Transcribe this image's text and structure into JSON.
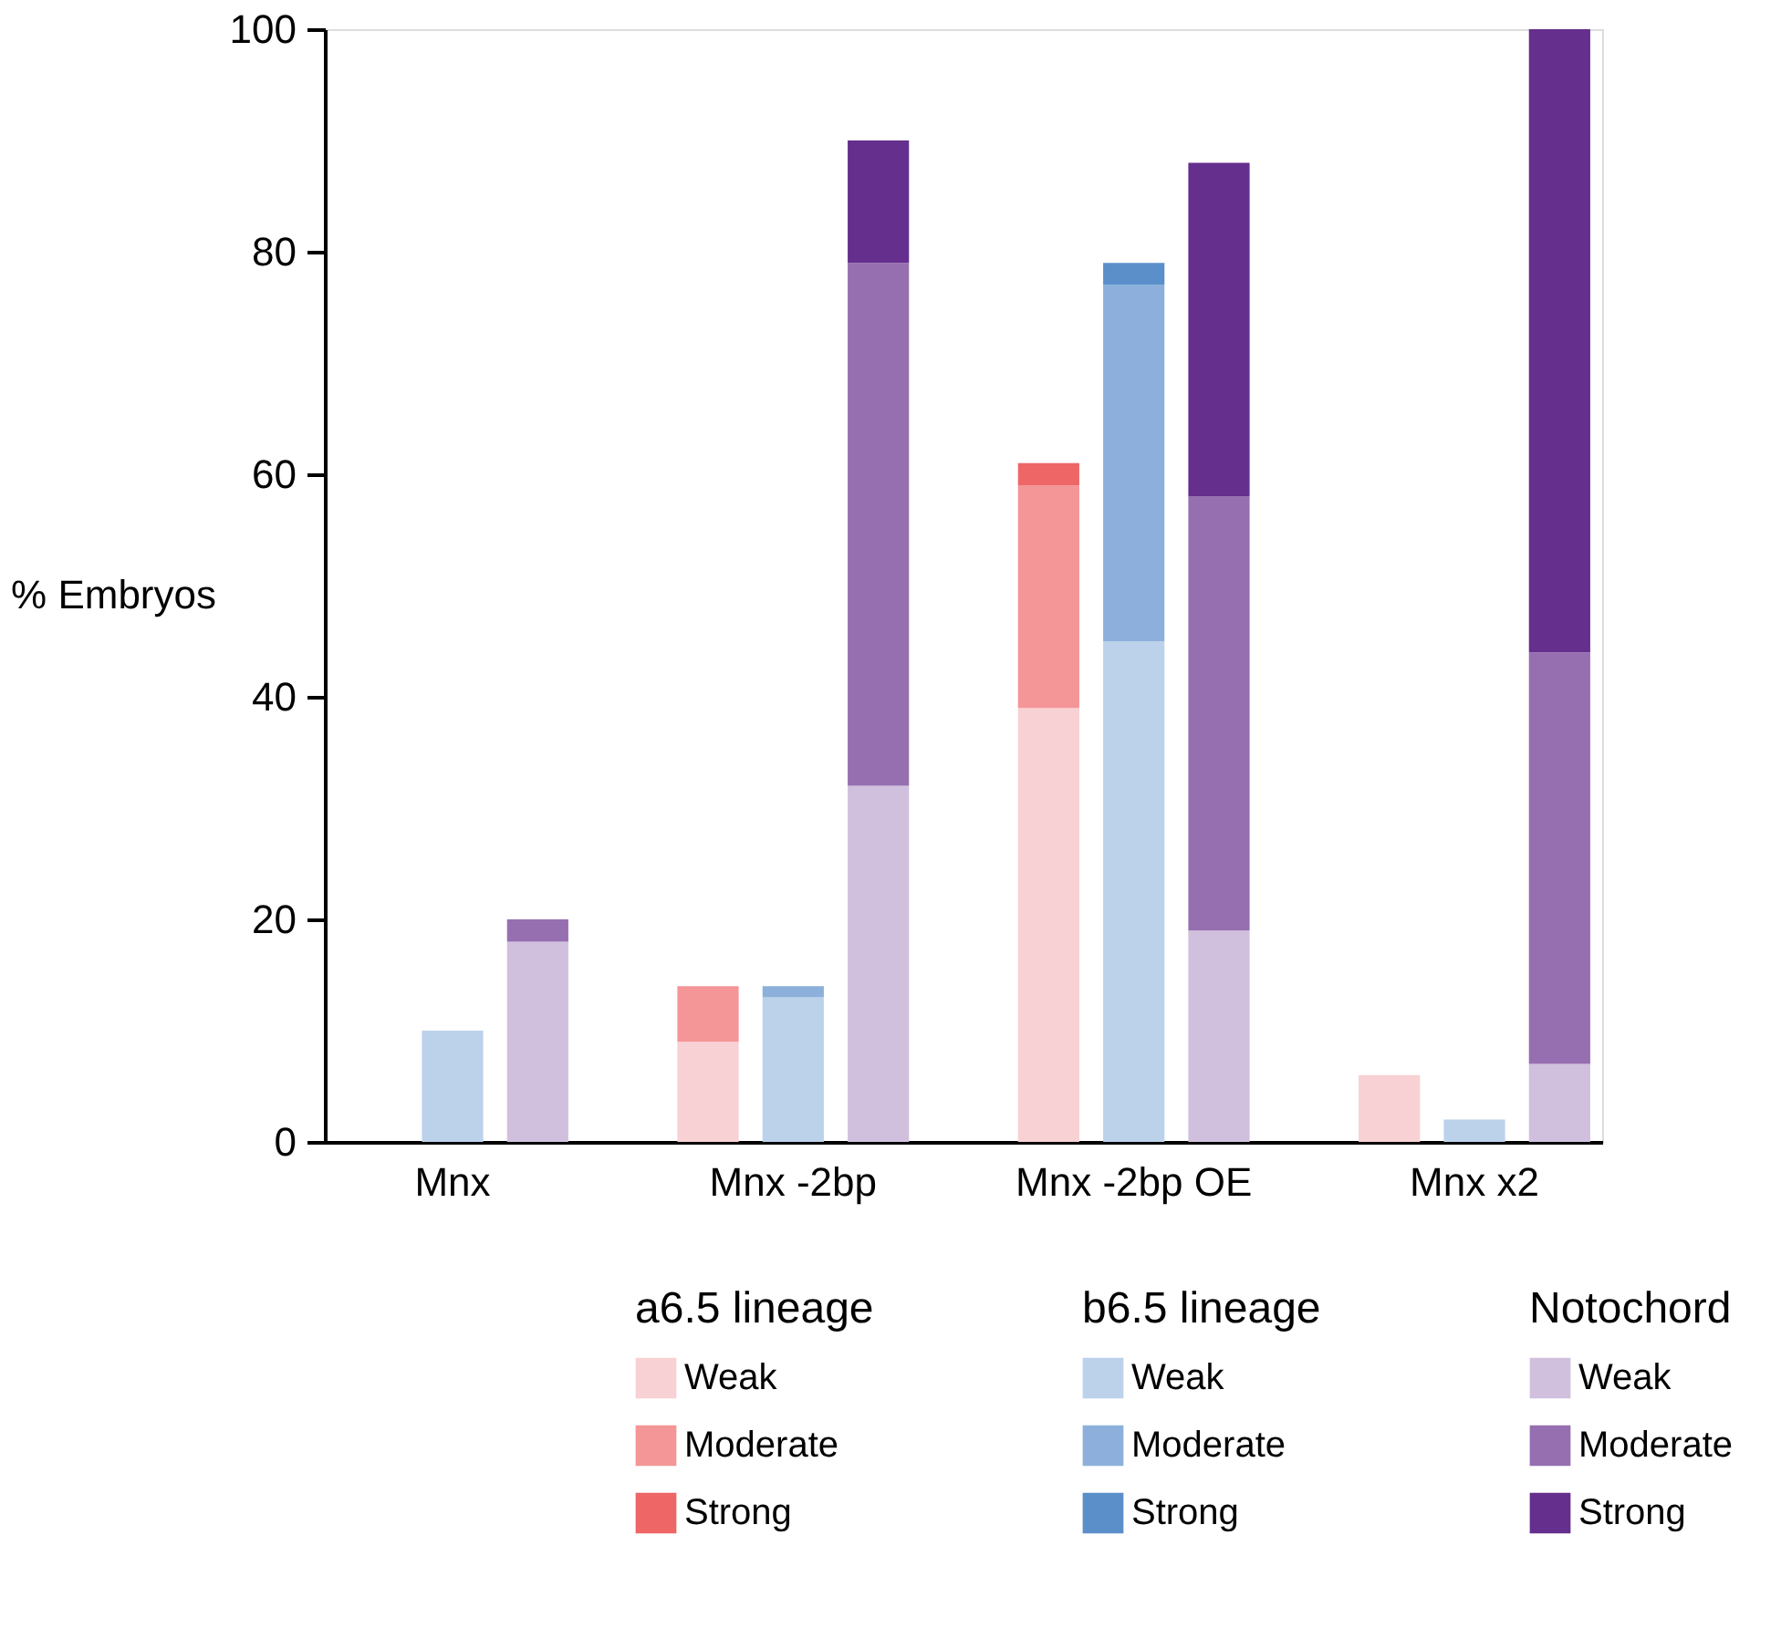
{
  "chart_data": {
    "type": "bar",
    "stacked": true,
    "ylabel": "% Embryos",
    "categories": [
      null,
      "Mnx",
      null,
      null,
      null,
      "Mnx -2bp",
      null,
      null,
      null,
      "Mnx -2bp OE",
      null,
      null,
      null,
      "Mnx x2",
      null
    ],
    "legend_title": [
      "a6.5 lineage",
      "b6.5 lineage",
      "Notochord"
    ],
    "series": [
      {
        "name": "Weak",
        "color": "#f7d1d3",
        "values": [
          null,
          null,
          null,
          null,
          9,
          null,
          null,
          null,
          39,
          null,
          null,
          null,
          6,
          null,
          null
        ]
      },
      {
        "name": "Moderate",
        "color": "#f49597",
        "values": [
          null,
          null,
          null,
          null,
          5,
          null,
          null,
          null,
          20,
          null,
          null,
          null,
          null,
          null,
          null
        ]
      },
      {
        "name": "Strong",
        "color": "#ee6666",
        "values": [
          null,
          null,
          null,
          null,
          null,
          null,
          null,
          null,
          2,
          null,
          null,
          null,
          null,
          null,
          null
        ]
      },
      {
        "name": "Weak",
        "color": "#bcd2ea",
        "values": [
          null,
          10,
          null,
          null,
          null,
          13,
          null,
          null,
          null,
          45,
          null,
          null,
          null,
          2,
          null
        ]
      },
      {
        "name": "Moderate",
        "color": "#8cb0db",
        "values": [
          null,
          null,
          null,
          null,
          null,
          1,
          null,
          null,
          null,
          32,
          null,
          null,
          null,
          null,
          null
        ]
      },
      {
        "name": "Strong",
        "color": "#5a8fca",
        "values": [
          null,
          null,
          null,
          null,
          null,
          null,
          null,
          null,
          null,
          2,
          null,
          null,
          null,
          null,
          null
        ]
      },
      {
        "name": "Weak",
        "color": "#d0c0de",
        "values": [
          null,
          null,
          18,
          null,
          null,
          null,
          32,
          null,
          null,
          null,
          19,
          null,
          null,
          null,
          7
        ]
      },
      {
        "name": "Moderate",
        "color": "#966fb0",
        "values": [
          null,
          null,
          2,
          null,
          null,
          null,
          47,
          null,
          null,
          null,
          39,
          null,
          null,
          null,
          37
        ]
      },
      {
        "name": "Strong",
        "color": "#652f8d",
        "values": [
          null,
          null,
          null,
          null,
          null,
          null,
          11,
          null,
          null,
          null,
          30,
          null,
          null,
          null,
          56
        ]
      }
    ],
    "ylim": [
      0,
      100
    ],
    "yticks": [
      0,
      20,
      40,
      60,
      80,
      100
    ],
    "grid": false,
    "legend": "bottom"
  }
}
